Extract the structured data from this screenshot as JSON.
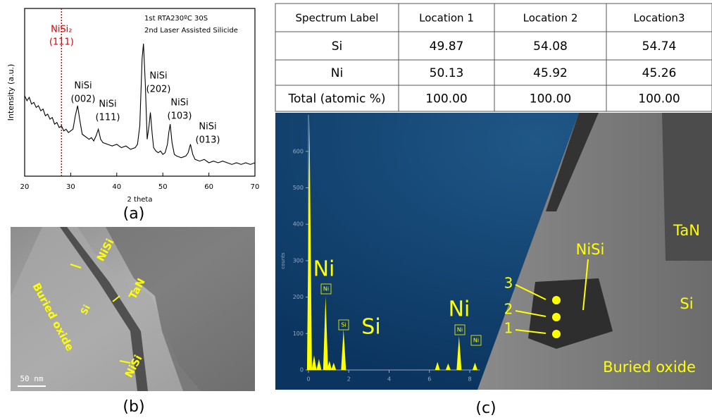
{
  "chart_data": [
    {
      "type": "line",
      "x_label": "2 theta",
      "y_label": "Intensity (a.u.)",
      "legend_lines": [
        "1st RTA230ºC 30S",
        "2nd Laser Assisted Silicide"
      ],
      "x": [
        20,
        20.5,
        21,
        21.5,
        22,
        22.5,
        23,
        23.5,
        24,
        24.5,
        25,
        25.5,
        26,
        26.5,
        27,
        27.5,
        28,
        28.5,
        29,
        29.5,
        30,
        30.5,
        31,
        31.5,
        32,
        32.5,
        33,
        33.5,
        34,
        34.5,
        35,
        35.5,
        36,
        36.5,
        37,
        38,
        39,
        40,
        41,
        42,
        43,
        44,
        44.5,
        45,
        45.5,
        45.8,
        46.2,
        46.6,
        47,
        47.3,
        47.7,
        48,
        48.5,
        49,
        49.5,
        50,
        50.5,
        51,
        51.3,
        51.6,
        52,
        52.5,
        53,
        54,
        55,
        55.5,
        56,
        56.5,
        57,
        58,
        59,
        60,
        61,
        62,
        63,
        64,
        65,
        66,
        67,
        68,
        69,
        70
      ],
      "values": [
        48,
        45,
        47,
        43,
        44,
        41,
        42,
        39,
        40,
        36,
        37,
        34,
        35,
        31,
        32,
        29,
        30,
        27,
        28,
        26,
        27,
        28,
        36,
        42,
        33,
        25,
        24,
        23,
        22,
        23,
        21,
        24,
        28,
        22,
        20,
        19,
        18,
        19,
        17,
        18,
        16,
        17,
        19,
        30,
        70,
        79,
        55,
        22,
        30,
        38,
        25,
        17,
        15,
        14,
        15,
        13,
        14,
        19,
        26,
        31,
        20,
        13,
        12,
        11,
        12,
        14,
        19,
        13,
        10,
        9,
        10,
        8,
        9,
        8,
        9,
        8,
        7,
        8,
        7,
        8,
        7,
        8
      ],
      "color": "#000000",
      "xlim": [
        20,
        70
      ],
      "xticks": [
        20,
        30,
        40,
        50,
        60,
        70
      ],
      "ylim": [
        0,
        100
      ],
      "reference_line": {
        "x": 28,
        "color": "#e00000",
        "lines": [
          "NiSi₂",
          "(111)"
        ]
      },
      "annotations": [
        {
          "lines": [
            "NiSi",
            "(002)"
          ]
        },
        {
          "lines": [
            "NiSi",
            "(111)"
          ]
        },
        {
          "lines": [
            "NiSi",
            "(202)"
          ]
        },
        {
          "lines": [
            "NiSi",
            "(103)"
          ]
        },
        {
          "lines": [
            "NiSi",
            "(013)"
          ]
        }
      ]
    },
    {
      "type": "spectrum",
      "y_label": "counts",
      "x": [
        0.05,
        0.28,
        0.52,
        0.85,
        1.04,
        1.25,
        1.74,
        6.4,
        6.93,
        7.47,
        8.26
      ],
      "values": [
        690,
        40,
        30,
        203,
        25,
        20,
        112,
        22,
        18,
        93,
        20
      ],
      "color": "#ffff00",
      "xlim": [
        0,
        8.5
      ],
      "xticks": [
        0,
        2,
        4,
        6,
        8
      ],
      "ylim": [
        0,
        700
      ],
      "yticks": [
        0,
        100,
        200,
        300,
        400,
        500,
        600
      ],
      "peak_labels": [
        {
          "big": "Ni",
          "box": "Ni"
        },
        {
          "big": "Si",
          "box": "Si"
        },
        {
          "big": "Ni",
          "box": "Ni"
        },
        {
          "box": "Ni"
        }
      ]
    }
  ],
  "panels": [
    "(a)",
    "(b)",
    "(c)"
  ],
  "image_b": {
    "labels": [
      "NiSi",
      "TaN",
      "Si",
      "Buried oxide",
      "NiSi"
    ],
    "scale_bar": "50 nm"
  },
  "image_c": {
    "labels": [
      "TaN",
      "NiSi",
      "Si",
      "Buried oxide"
    ],
    "points": [
      "3",
      "2",
      "1"
    ]
  },
  "table": {
    "header": [
      "Spectrum Label",
      "Location 1",
      "Location 2",
      "Location3"
    ],
    "rows": [
      [
        "Si",
        "49.87",
        "54.08",
        "54.74"
      ],
      [
        "Ni",
        "50.13",
        "45.92",
        "45.26"
      ],
      [
        "Total  (atomic %)",
        "100.00",
        "100.00",
        "100.00"
      ]
    ]
  }
}
